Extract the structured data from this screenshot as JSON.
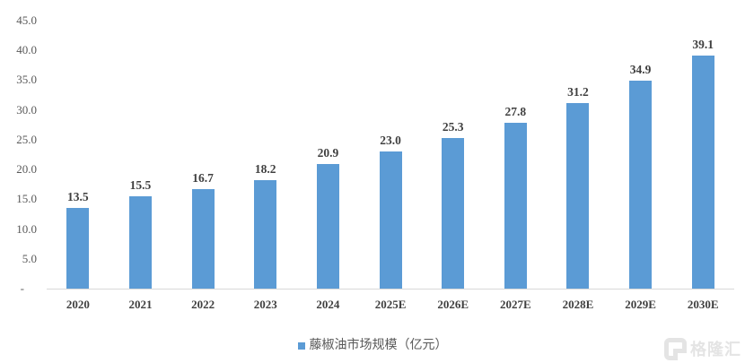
{
  "chart_data": {
    "type": "bar",
    "title": "",
    "xlabel": "",
    "ylabel": "",
    "categories": [
      "2020",
      "2021",
      "2022",
      "2023",
      "2024",
      "2025E",
      "2026E",
      "2027E",
      "2028E",
      "2029E",
      "2030E"
    ],
    "values": [
      13.5,
      15.5,
      16.7,
      18.2,
      20.9,
      23.0,
      25.3,
      27.8,
      31.2,
      34.9,
      39.1
    ],
    "value_labels": [
      "13.5",
      "15.5",
      "16.7",
      "18.2",
      "20.9",
      "23.0",
      "25.3",
      "27.8",
      "31.2",
      "34.9",
      "39.1"
    ],
    "ylim": [
      0,
      45
    ],
    "y_tick_labels": [
      "45.0",
      "40.0",
      "35.0",
      "30.0",
      "25.0",
      "20.0",
      "15.0",
      "10.0",
      "5.0",
      "-"
    ],
    "y_tick_values": [
      45,
      40,
      35,
      30,
      25,
      20,
      15,
      10,
      5,
      0
    ],
    "grid": false,
    "legend_position": "bottom",
    "legend": "藤椒油市场规模（亿元）",
    "bar_color": "#5b9bd5",
    "axis_line_color": "#d9d9d9",
    "label_color": "#3f3f3f",
    "tick_color": "#595959"
  },
  "watermark": {
    "logo": "gelonghui-logo",
    "text": "格隆汇"
  }
}
